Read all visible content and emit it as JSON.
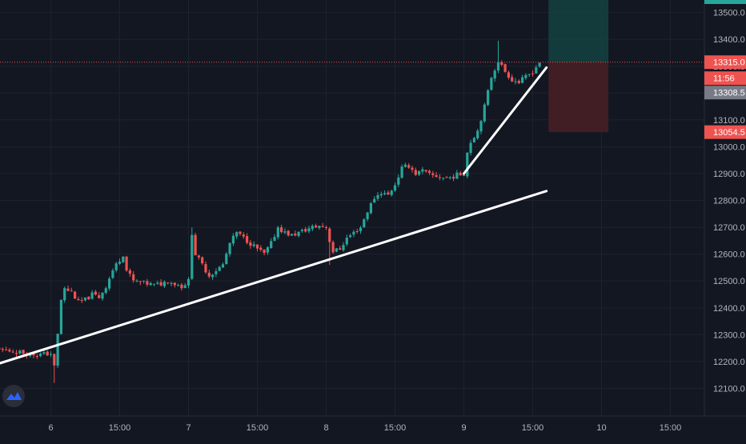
{
  "chart_data": {
    "type": "candlestick",
    "colors": {
      "background": "#131722",
      "grid": "#1e222d",
      "up": "#26a69a",
      "down": "#ef5350",
      "axis_text": "#b2b5be",
      "trendline": "#ffffff",
      "price_line": "#ef5350",
      "target_zone": "#15423f",
      "stop_zone": "#4a1e24",
      "countdown_bg": "#2a2e39",
      "bid_bg": "#787b86"
    },
    "y_axis": {
      "position": "right",
      "range": [
        12000,
        13600
      ],
      "ticks": [
        "13500.0",
        "13400.0",
        "13300.0",
        "13200.0",
        "13100.0",
        "13000.0",
        "12900.0",
        "12800.0",
        "12700.0",
        "12600.0",
        "12500.0",
        "12400.0",
        "12300.0",
        "12200.0",
        "12100.0"
      ]
    },
    "x_axis": {
      "unit": "hours",
      "range": [
        -19,
        87
      ],
      "ticks": [
        {
          "t": 0,
          "label": "6"
        },
        {
          "t": 10,
          "label": "15:00"
        },
        {
          "t": 20,
          "label": "7"
        },
        {
          "t": 30,
          "label": "15:00"
        },
        {
          "t": 40,
          "label": "8"
        },
        {
          "t": 50,
          "label": "15:00"
        },
        {
          "t": 60,
          "label": "9"
        },
        {
          "t": 70,
          "label": "15:00"
        },
        {
          "t": 80,
          "label": "10"
        },
        {
          "t": 90,
          "label": "15:00"
        }
      ]
    },
    "close_path": [
      [
        -19,
        12240
      ],
      [
        -12,
        12250
      ],
      [
        -8,
        12245
      ],
      [
        -6,
        12240
      ],
      [
        -2,
        12225
      ],
      [
        0,
        12230
      ],
      [
        0.5,
        12180
      ],
      [
        1,
        12300
      ],
      [
        1.5,
        12430
      ],
      [
        2,
        12470
      ],
      [
        3,
        12460
      ],
      [
        4,
        12420
      ],
      [
        5,
        12430
      ],
      [
        6,
        12450
      ],
      [
        7,
        12440
      ],
      [
        8,
        12480
      ],
      [
        9,
        12540
      ],
      [
        10,
        12580
      ],
      [
        10.5,
        12600
      ],
      [
        11,
        12540
      ],
      [
        12,
        12500
      ],
      [
        13,
        12495
      ],
      [
        14,
        12490
      ],
      [
        15,
        12485
      ],
      [
        16,
        12490
      ],
      [
        17,
        12500
      ],
      [
        18,
        12490
      ],
      [
        19,
        12480
      ],
      [
        20,
        12500
      ],
      [
        20.5,
        12680
      ],
      [
        21,
        12600
      ],
      [
        22,
        12560
      ],
      [
        23,
        12520
      ],
      [
        24,
        12540
      ],
      [
        25,
        12560
      ],
      [
        26,
        12640
      ],
      [
        27,
        12680
      ],
      [
        28,
        12660
      ],
      [
        29,
        12640
      ],
      [
        30,
        12620
      ],
      [
        31,
        12600
      ],
      [
        32,
        12640
      ],
      [
        33,
        12700
      ],
      [
        34,
        12680
      ],
      [
        35,
        12670
      ],
      [
        36,
        12680
      ],
      [
        37,
        12690
      ],
      [
        38,
        12700
      ],
      [
        39,
        12705
      ],
      [
        40,
        12700
      ],
      [
        40.5,
        12650
      ],
      [
        41,
        12610
      ],
      [
        42,
        12620
      ],
      [
        43,
        12660
      ],
      [
        44,
        12680
      ],
      [
        45,
        12700
      ],
      [
        46,
        12760
      ],
      [
        47,
        12810
      ],
      [
        48,
        12830
      ],
      [
        49,
        12820
      ],
      [
        50,
        12860
      ],
      [
        51,
        12920
      ],
      [
        52,
        12930
      ],
      [
        53,
        12900
      ],
      [
        54,
        12910
      ],
      [
        55,
        12895
      ],
      [
        56,
        12890
      ],
      [
        57,
        12885
      ],
      [
        58,
        12885
      ],
      [
        59,
        12895
      ],
      [
        60,
        12900
      ],
      [
        60.5,
        12980
      ],
      [
        61,
        13020
      ],
      [
        62,
        13060
      ],
      [
        63,
        13150
      ],
      [
        64,
        13260
      ],
      [
        65,
        13320
      ],
      [
        66,
        13280
      ],
      [
        67,
        13250
      ],
      [
        68,
        13240
      ],
      [
        69,
        13260
      ],
      [
        70,
        13280
      ],
      [
        71,
        13315
      ]
    ],
    "spikes": [
      {
        "t": 0.5,
        "low": 12120
      },
      {
        "t": 20.5,
        "high": 12700
      },
      {
        "t": 40.5,
        "low": 12560
      },
      {
        "t": 65.2,
        "high": 13395
      }
    ],
    "trendlines": [
      {
        "from": [
          -19,
          12100
        ],
        "to": [
          72,
          12835
        ]
      },
      {
        "from": [
          60,
          12900
        ],
        "to": [
          72,
          13295
        ]
      }
    ],
    "position_tool": {
      "t_start": 72.3,
      "t_end": 81,
      "entry": 13315.0,
      "target": 13620,
      "stop": 13054.5
    },
    "tags": {
      "last_price": "13315.0",
      "countdown": "11:56",
      "bid": "13308.5",
      "stop": "13054.5"
    }
  }
}
